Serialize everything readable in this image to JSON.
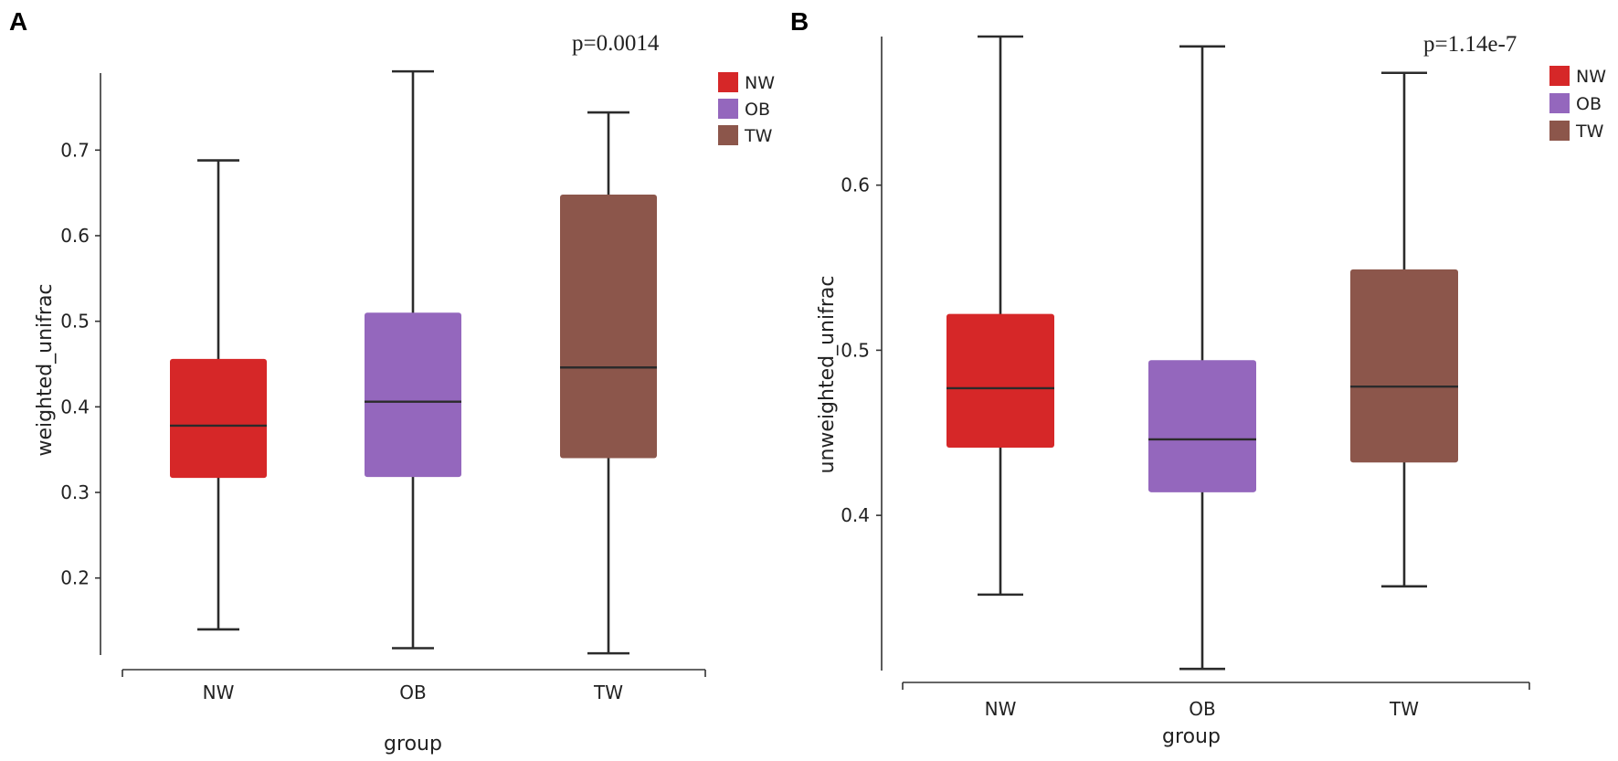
{
  "chart_data": [
    {
      "panel": "A",
      "type": "box",
      "pvalue": "p=0.0014",
      "xlabel": "group",
      "ylabel": "weighted_unifrac",
      "ylim": [
        0.11,
        0.79
      ],
      "yticks": [
        "0.2",
        "0.3",
        "0.4",
        "0.5",
        "0.6",
        "0.7"
      ],
      "categories": [
        "NW",
        "OB",
        "TW"
      ],
      "boxes": [
        {
          "group": "NW",
          "min": 0.14,
          "q1": 0.317,
          "median": 0.378,
          "q3": 0.456,
          "max": 0.688
        },
        {
          "group": "OB",
          "min": 0.118,
          "q1": 0.318,
          "median": 0.406,
          "q3": 0.51,
          "max": 0.792
        },
        {
          "group": "TW",
          "min": 0.112,
          "q1": 0.34,
          "median": 0.446,
          "q3": 0.648,
          "max": 0.744
        }
      ],
      "legend": [
        {
          "label": "NW",
          "color": "#d62728"
        },
        {
          "label": "OB",
          "color": "#9467bd"
        },
        {
          "label": "TW",
          "color": "#8c564b"
        }
      ]
    },
    {
      "panel": "B",
      "type": "box",
      "pvalue": "p=1.14e-7",
      "xlabel": "group",
      "ylabel": "unweighted_unifrac",
      "ylim": [
        0.306,
        0.69
      ],
      "yticks": [
        "0.4",
        "0.5",
        "0.6"
      ],
      "categories": [
        "NW",
        "OB",
        "TW"
      ],
      "boxes": [
        {
          "group": "NW",
          "min": 0.352,
          "q1": 0.441,
          "median": 0.477,
          "q3": 0.522,
          "max": 0.69
        },
        {
          "group": "OB",
          "min": 0.307,
          "q1": 0.414,
          "median": 0.446,
          "q3": 0.494,
          "max": 0.684
        },
        {
          "group": "TW",
          "min": 0.357,
          "q1": 0.432,
          "median": 0.478,
          "q3": 0.549,
          "max": 0.668
        }
      ],
      "legend": [
        {
          "label": "NW",
          "color": "#d62728"
        },
        {
          "label": "OB",
          "color": "#9467bd"
        },
        {
          "label": "TW",
          "color": "#8c564b"
        }
      ]
    }
  ]
}
